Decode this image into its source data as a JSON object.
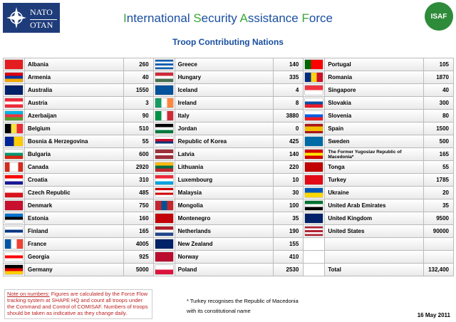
{
  "header": {
    "logo_left": [
      "NATO",
      "OTAN"
    ],
    "title": "International Security Assistance Force",
    "subtitle": "Troop Contributing Nations",
    "logo_right": "ISAF"
  },
  "table": {
    "columns": [
      {
        "rows": [
          {
            "country": "Albania",
            "troops": 260
          },
          {
            "country": "Armenia",
            "troops": 40
          },
          {
            "country": "Australia",
            "troops": 1550
          },
          {
            "country": "Austria",
            "troops": 3
          },
          {
            "country": "Azerbaijan",
            "troops": 90
          },
          {
            "country": "Belgium",
            "troops": 510
          },
          {
            "country": "Bosnia & Herzegovina",
            "troops": 55
          },
          {
            "country": "Bulgaria",
            "troops": 600
          },
          {
            "country": "Canada",
            "troops": 2920
          },
          {
            "country": "Croatia",
            "troops": 310
          },
          {
            "country": "Czech Republic",
            "troops": 485
          },
          {
            "country": "Denmark",
            "troops": 750
          },
          {
            "country": "Estonia",
            "troops": 160
          },
          {
            "country": "Finland",
            "troops": 165
          },
          {
            "country": "France",
            "troops": 4005
          },
          {
            "country": "Georgia",
            "troops": 925
          },
          {
            "country": "Germany",
            "troops": 5000
          }
        ]
      },
      {
        "rows": [
          {
            "country": "Greece",
            "troops": 140
          },
          {
            "country": "Hungary",
            "troops": 335
          },
          {
            "country": "Iceland",
            "troops": 4
          },
          {
            "country": "Ireland",
            "troops": 8
          },
          {
            "country": "Italy",
            "troops": 3880
          },
          {
            "country": "Jordan",
            "troops": 0
          },
          {
            "country": "Republic of Korea",
            "troops": 425
          },
          {
            "country": "Latvia",
            "troops": 140
          },
          {
            "country": "Lithuania",
            "troops": 220
          },
          {
            "country": "Luxembourg",
            "troops": 10
          },
          {
            "country": "Malaysia",
            "troops": 30
          },
          {
            "country": "Mongolia",
            "troops": 100
          },
          {
            "country": "Montenegro",
            "troops": 35
          },
          {
            "country": "Netherlands",
            "troops": 190
          },
          {
            "country": "New Zealand",
            "troops": 155
          },
          {
            "country": "Norway",
            "troops": 410
          },
          {
            "country": "Poland",
            "troops": 2530
          }
        ]
      },
      {
        "rows": [
          {
            "country": "Portugal",
            "troops": 105
          },
          {
            "country": "Romania",
            "troops": 1870
          },
          {
            "country": "Singapore",
            "troops": 40
          },
          {
            "country": "Slovakia",
            "troops": 300
          },
          {
            "country": "Slovenia",
            "troops": 80
          },
          {
            "country": "Spain",
            "troops": 1500
          },
          {
            "country": "Sweden",
            "troops": 500
          },
          {
            "country": "The Former Yugoslav Republic of Macedonia*",
            "troops": 165
          },
          {
            "country": "Tonga",
            "troops": 55
          },
          {
            "country": "Turkey",
            "troops": 1785
          },
          {
            "country": "Ukraine",
            "troops": 20
          },
          {
            "country": "United Arab Emirates",
            "troops": 35
          },
          {
            "country": "United Kingdom",
            "troops": 9500
          },
          {
            "country": "United States",
            "troops": 90000
          }
        ]
      }
    ],
    "total": {
      "label": "Total",
      "value": "132,400"
    }
  },
  "footer": {
    "note_label": "Note on numbers:",
    "note_text": "Figures are calculated by the Force Flow tracking system at SHAPE HQ and count all troops under the Command and Control of COMISAF. Numbers of troops should be taken as indicative as they change daily.",
    "footnote": [
      "* Turkey recognises the Republic of Macedonia",
      "with its constitutional name"
    ],
    "date": "16 May 2011"
  }
}
